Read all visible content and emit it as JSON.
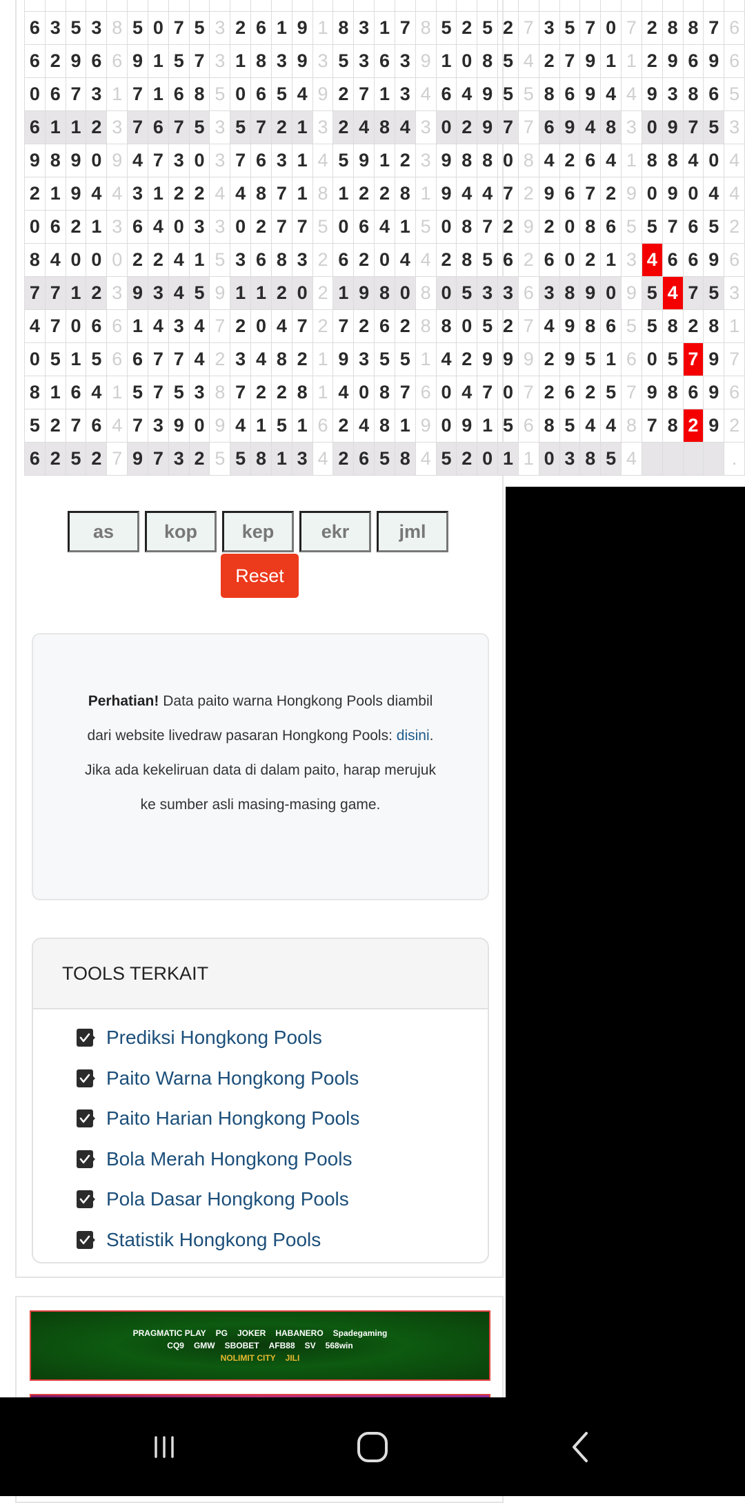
{
  "paito": {
    "rows": [
      [
        "6353",
        "8",
        "5075",
        "3",
        "2619",
        "1",
        "8317",
        "8",
        "5252",
        "7",
        "3570",
        "7",
        "2887",
        "6"
      ],
      [
        "6296",
        "6",
        "9157",
        "3",
        "1839",
        "3",
        "5363",
        "9",
        "1085",
        "4",
        "2791",
        "1",
        "2969",
        "6"
      ],
      [
        "0673",
        "1",
        "7168",
        "5",
        "0654",
        "9",
        "2713",
        "4",
        "6495",
        "5",
        "8694",
        "4",
        "9386",
        "5"
      ],
      [
        "6112",
        "3",
        "7675",
        "3",
        "5721",
        "3",
        "2484",
        "3",
        "0297",
        "7",
        "6948",
        "3",
        "0975",
        "3"
      ],
      [
        "9890",
        "9",
        "4730",
        "3",
        "7631",
        "4",
        "5912",
        "3",
        "9880",
        "8",
        "4264",
        "1",
        "8840",
        "4"
      ],
      [
        "2194",
        "4",
        "3122",
        "4",
        "4871",
        "8",
        "1228",
        "1",
        "9447",
        "2",
        "9672",
        "9",
        "0904",
        "4"
      ],
      [
        "0621",
        "3",
        "6403",
        "3",
        "0277",
        "5",
        "0641",
        "5",
        "0872",
        "9",
        "2086",
        "5",
        "5765",
        "2"
      ],
      [
        "8400",
        "0",
        "2241",
        "5",
        "3683",
        "2",
        "6204",
        "4",
        "2856",
        "2",
        "6021",
        "3",
        "4669",
        "6"
      ],
      [
        "7712",
        "3",
        "9345",
        "9",
        "1120",
        "2",
        "1980",
        "8",
        "0533",
        "6",
        "3890",
        "9",
        "5475",
        "3"
      ],
      [
        "4706",
        "6",
        "1434",
        "7",
        "2047",
        "2",
        "7262",
        "8",
        "8052",
        "7",
        "4986",
        "5",
        "5828",
        "1"
      ],
      [
        "0515",
        "6",
        "6774",
        "2",
        "3482",
        "1",
        "9355",
        "1",
        "4299",
        "9",
        "2951",
        "6",
        "0579",
        "7"
      ],
      [
        "8164",
        "1",
        "5753",
        "8",
        "7228",
        "1",
        "4087",
        "6",
        "0470",
        "7",
        "2625",
        "7",
        "9869",
        "6"
      ],
      [
        "5276",
        "4",
        "7390",
        "9",
        "4151",
        "6",
        "2481",
        "9",
        "0915",
        "6",
        "8544",
        "8",
        "7829",
        "2"
      ],
      [
        "6252",
        "7",
        "9732",
        "5",
        "5813",
        "4",
        "2658",
        "4",
        "5201",
        "1",
        "0385",
        "4",
        "",
        "."
      ]
    ],
    "shaded_rows": [
      3,
      8,
      13
    ],
    "highlights": [
      [
        7,
        30
      ],
      [
        8,
        31
      ],
      [
        10,
        32
      ],
      [
        12,
        32
      ]
    ],
    "highlight_color": "#f40000"
  },
  "buttons": {
    "as": "as",
    "kop": "kop",
    "kep": "kep",
    "ekr": "ekr",
    "jml": "jml",
    "reset": "Reset"
  },
  "notice": {
    "bold": "Perhatian!",
    "text1": " Data paito warna Hongkong Pools diambil dari website livedraw pasaran Hongkong Pools: ",
    "link": "disini",
    "text2": ". Jika ada kekeliruan data di dalam paito, harap merujuk ke sumber asli masing-masing game."
  },
  "tools": {
    "title": "TOOLS TERKAIT",
    "items": [
      "Prediksi Hongkong Pools",
      "Paito Warna Hongkong Pools",
      "Paito Harian Hongkong Pools",
      "Bola Merah Hongkong Pools",
      "Pola Dasar Hongkong Pools",
      "Statistik Hongkong Pools"
    ]
  },
  "banner": {
    "row1": [
      "PRAGMATIC PLAY",
      "PG",
      "JOKER",
      "HABANERO",
      "Spadegaming"
    ],
    "row2": [
      "CQ9",
      "GMW",
      "SBOBET",
      "AFB88",
      "SV",
      "568win"
    ],
    "row3": [
      "NOLIMIT CITY",
      "JILI"
    ]
  },
  "navbar": {
    "icons": [
      "recent-apps-icon",
      "home-icon",
      "back-icon"
    ]
  }
}
